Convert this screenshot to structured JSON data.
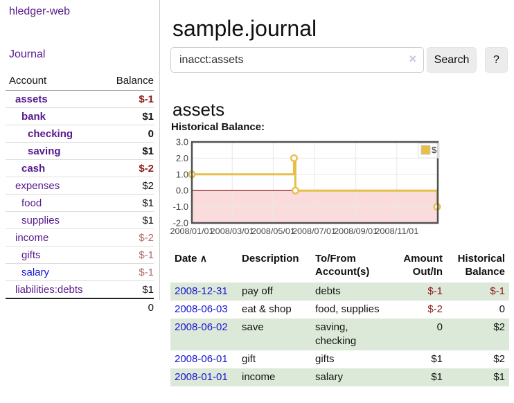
{
  "app": {
    "title": "hledger-web",
    "nav_journal": "Journal"
  },
  "sidebar": {
    "header": {
      "account": "Account",
      "balance": "Balance"
    },
    "accounts": [
      {
        "name": "assets",
        "balance": "$-1",
        "indent": 1,
        "bold": true
      },
      {
        "name": "bank",
        "balance": "$1",
        "indent": 2,
        "bold": true
      },
      {
        "name": "checking",
        "balance": "0",
        "indent": 3,
        "bold": true
      },
      {
        "name": "saving",
        "balance": "$1",
        "indent": 3,
        "bold": true
      },
      {
        "name": "cash",
        "balance": "$-2",
        "indent": 2,
        "bold": true
      },
      {
        "name": "expenses",
        "balance": "$2",
        "indent": 1,
        "bold": false
      },
      {
        "name": "food",
        "balance": "$1",
        "indent": 2,
        "bold": false
      },
      {
        "name": "supplies",
        "balance": "$1",
        "indent": 2,
        "bold": false
      },
      {
        "name": "income",
        "balance": "$-2",
        "indent": 1,
        "bold": false,
        "dimmed": true
      },
      {
        "name": "gifts",
        "balance": "$-1",
        "indent": 2,
        "bold": false,
        "dimmed": true
      },
      {
        "name": "salary",
        "balance": "$-1",
        "indent": 2,
        "bold": false,
        "dimmed": true,
        "blue": true
      },
      {
        "name": "liabilities:debts",
        "balance": "$1",
        "indent": 1,
        "bold": false
      }
    ],
    "total": "0"
  },
  "header": {
    "title": "sample.journal"
  },
  "search": {
    "value": "inacct:assets",
    "clear_icon": "×",
    "button_label": "Search",
    "help_label": "?"
  },
  "account_page": {
    "heading": "assets",
    "chart_label": "Historical Balance:"
  },
  "chart_data": {
    "type": "line",
    "step": true,
    "title": "Historical Balance",
    "series": [
      {
        "name": "$",
        "color": "#e6bf4a",
        "points": [
          [
            "2008/01/01",
            1
          ],
          [
            "2008/06/01",
            2
          ],
          [
            "2008/06/03",
            0
          ],
          [
            "2008/12/31",
            -1
          ]
        ]
      }
    ],
    "x_range": [
      "2008/01/01",
      "2009/01/01"
    ],
    "x_ticks": [
      "2008/01/01",
      "2008/03/01",
      "2008/05/01",
      "2008/07/01",
      "2008/09/01",
      "2008/11/01"
    ],
    "y_ticks": [
      3.0,
      2.0,
      1.0,
      0.0,
      -1.0,
      -2.0
    ],
    "ylim": [
      -2,
      3
    ],
    "grid": true,
    "negative_region": {
      "fill": "#fbdcdc",
      "line": "#8b0000"
    },
    "legend": {
      "label": "$",
      "position": "top-right"
    }
  },
  "register": {
    "columns": [
      "Date",
      "Description",
      "To/From Account(s)",
      "Amount Out/In",
      "Historical Balance"
    ],
    "sort_indicator": "∧",
    "rows": [
      {
        "date": "2008-12-31",
        "description": "pay off",
        "accounts": "debts",
        "amount": "$-1",
        "balance": "$-1"
      },
      {
        "date": "2008-06-03",
        "description": "eat & shop",
        "accounts": "food, supplies",
        "amount": "$-2",
        "balance": "0"
      },
      {
        "date": "2008-06-02",
        "description": "save",
        "accounts": "saving, checking",
        "amount": "0",
        "balance": "$2"
      },
      {
        "date": "2008-06-01",
        "description": "gift",
        "accounts": "gifts",
        "amount": "$1",
        "balance": "$2"
      },
      {
        "date": "2008-01-01",
        "description": "income",
        "accounts": "salary",
        "amount": "$1",
        "balance": "$1"
      }
    ]
  },
  "colors": {
    "link_purple": "#561a8b",
    "link_blue": "#1414d2",
    "negative_red": "#8b1a1a",
    "negative_dim": "#b36a6a",
    "row_stripe_green": "#dde9d8",
    "chart_gold": "#e6bf4a",
    "chart_negative_fill": "#fbdcdc",
    "chart_zero_line": "#8b0000",
    "chart_border": "#515151"
  }
}
